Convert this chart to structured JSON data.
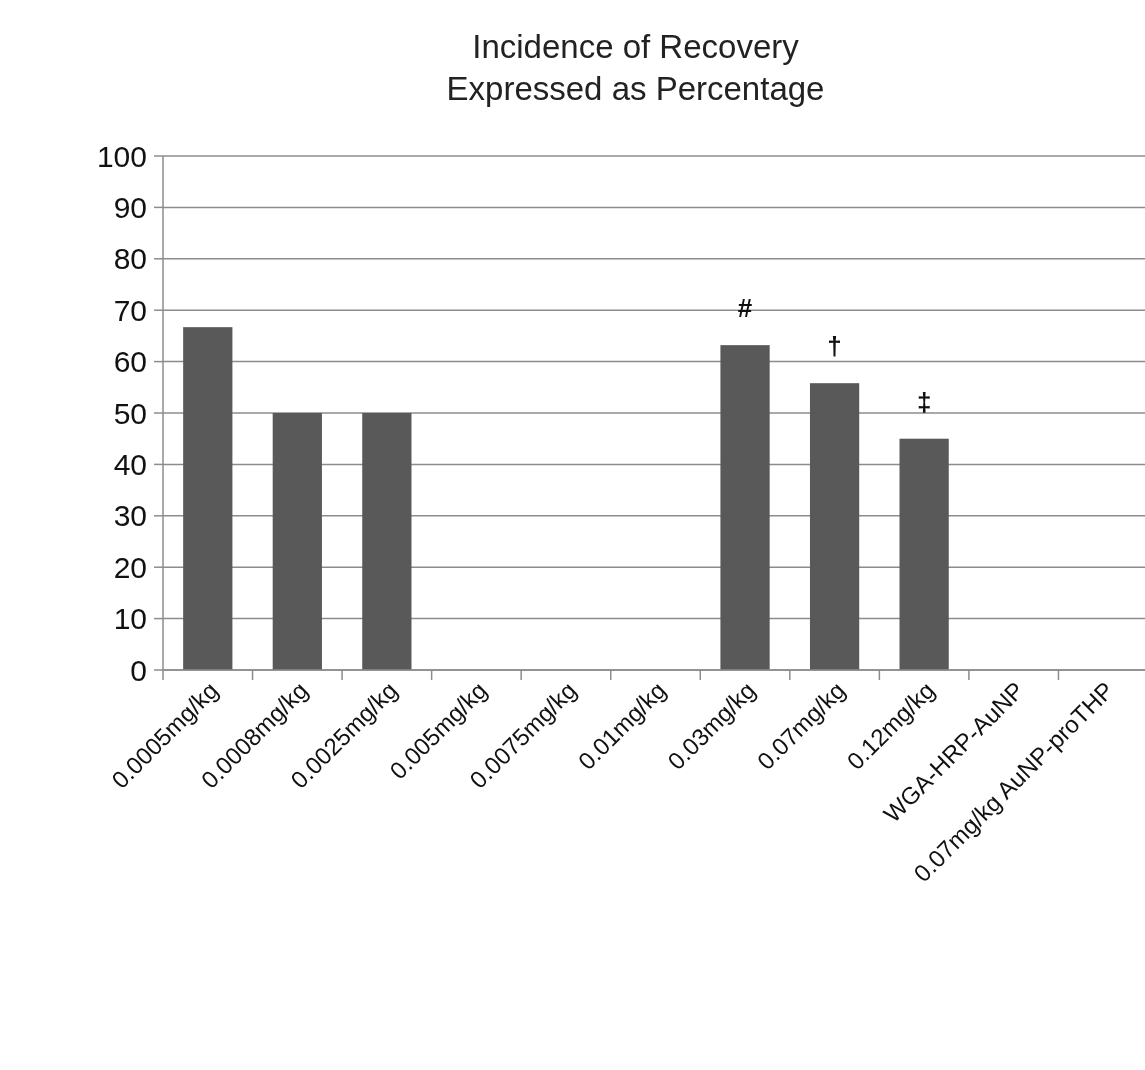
{
  "chart_data": {
    "type": "bar",
    "title": "Incidence of Recovery\nExpressed as Percentage",
    "categories": [
      "0.0005mg/kg",
      "0.0008mg/kg",
      "0.0025mg/kg",
      "0.005mg/kg",
      "0.0075mg/kg",
      "0.01mg/kg",
      "0.03mg/kg",
      "0.07mg/kg",
      "0.12mg/kg",
      "WGA-HRP-AuNP",
      "0.07mg/kg AuNP-proTHP"
    ],
    "values": [
      66.7,
      50,
      50,
      0,
      0,
      0,
      63.2,
      55.8,
      45,
      0,
      0
    ],
    "color": "#595959",
    "ylim": [
      0,
      100
    ],
    "yticks": [
      0,
      10,
      20,
      30,
      40,
      50,
      60,
      70,
      80,
      90,
      100
    ],
    "grid": "y",
    "annotations": [
      {
        "text": "#",
        "x": "0.03mg/kg",
        "y": 63.2
      },
      {
        "text": "†",
        "x": "0.07mg/kg",
        "y": 55.8
      },
      {
        "text": "‡",
        "x": "0.12mg/kg",
        "y": 45
      }
    ]
  }
}
